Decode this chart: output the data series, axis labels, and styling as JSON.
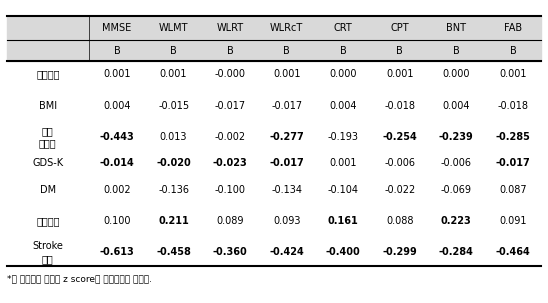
{
  "col_headers_row1": [
    "MMSE",
    "WLMT",
    "WLRT",
    "WLRcT",
    "CRT",
    "CPT",
    "BNT",
    "FAB"
  ],
  "col_headers_row2": [
    "B",
    "B",
    "B",
    "B",
    "B",
    "B",
    "B",
    "B"
  ],
  "row_labels": [
    "주운동량",
    "BMI",
    "현재\n우울증",
    "GDS-K",
    "DM",
    "고지혈증",
    "Stroke\n병력"
  ],
  "data": [
    [
      "0.001",
      "0.001",
      "-0.000",
      "0.001",
      "0.000",
      "0.001",
      "0.000",
      "0.001"
    ],
    [
      "0.004",
      "-0.015",
      "-0.017",
      "-0.017",
      "0.004",
      "-0.018",
      "0.004",
      "-0.018"
    ],
    [
      "-0.443",
      "0.013",
      "-0.002",
      "-0.277",
      "-0.193",
      "-0.254",
      "-0.239",
      "-0.285"
    ],
    [
      "-0.014",
      "-0.020",
      "-0.023",
      "-0.017",
      "0.001",
      "-0.006",
      "-0.006",
      "-0.017"
    ],
    [
      "0.002",
      "-0.136",
      "-0.100",
      "-0.134",
      "-0.104",
      "-0.022",
      "-0.069",
      "0.087"
    ],
    [
      "0.100",
      "0.211",
      "0.089",
      "0.093",
      "0.161",
      "0.088",
      "0.223",
      "0.091"
    ],
    [
      "-0.613",
      "-0.458",
      "-0.360",
      "-0.424",
      "-0.400",
      "-0.299",
      "-0.284",
      "-0.464"
    ]
  ],
  "bold": [
    [
      false,
      false,
      false,
      false,
      false,
      false,
      false,
      false
    ],
    [
      false,
      false,
      false,
      false,
      false,
      false,
      false,
      false
    ],
    [
      true,
      false,
      false,
      true,
      false,
      true,
      true,
      true
    ],
    [
      true,
      true,
      true,
      true,
      false,
      false,
      false,
      true
    ],
    [
      false,
      false,
      false,
      false,
      false,
      false,
      false,
      false
    ],
    [
      false,
      true,
      false,
      false,
      true,
      false,
      true,
      false
    ],
    [
      true,
      true,
      true,
      true,
      true,
      true,
      true,
      true
    ]
  ],
  "footnote": "*각 인지기능 검사의 z score를 종속변수로 분석함.",
  "header_bg": "#d9d9d9",
  "bg_color": "#ffffff",
  "text_color": "#000000"
}
